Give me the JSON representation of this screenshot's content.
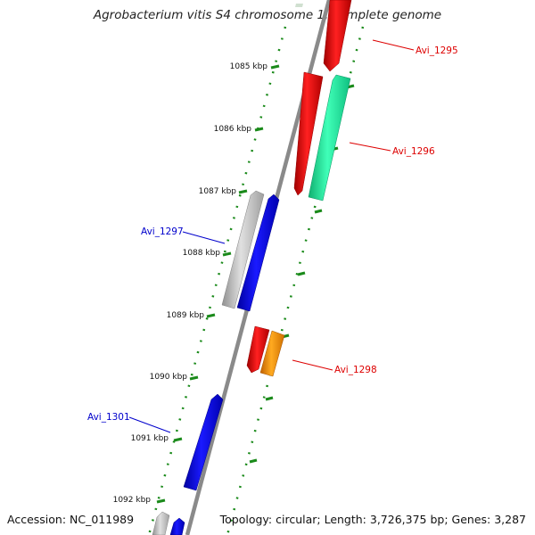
{
  "title": "Agrobacterium vitis S4 chromosome 1, complete genome",
  "footer": {
    "accession": "Accession: NC_011989",
    "summary": "Topology: circular; Length: 3,726,375 bp; Genes: 3,287"
  },
  "ruler": {
    "tick_labels": [
      "1085 kbp",
      "1086 kbp",
      "1087 kbp",
      "1088 kbp",
      "1089 kbp",
      "1090 kbp",
      "1091 kbp",
      "1092 kbp"
    ]
  },
  "colors": {
    "backbone": "#808080",
    "tick": "#1a8a1a",
    "forward_label": "#dd0000",
    "reverse_label": "#0000cc",
    "red": "#e00000",
    "green": "#1ef0a0",
    "orange": "#ff9900",
    "blue": "#0000ee",
    "gray": "#b8b8b8"
  },
  "gene_labels": [
    {
      "name": "Avi_1295",
      "strand": "forward"
    },
    {
      "name": "Avi_1296",
      "strand": "forward"
    },
    {
      "name": "Avi_1297",
      "strand": "reverse"
    },
    {
      "name": "Avi_1298",
      "strand": "forward"
    },
    {
      "name": "Avi_1301",
      "strand": "reverse"
    }
  ]
}
